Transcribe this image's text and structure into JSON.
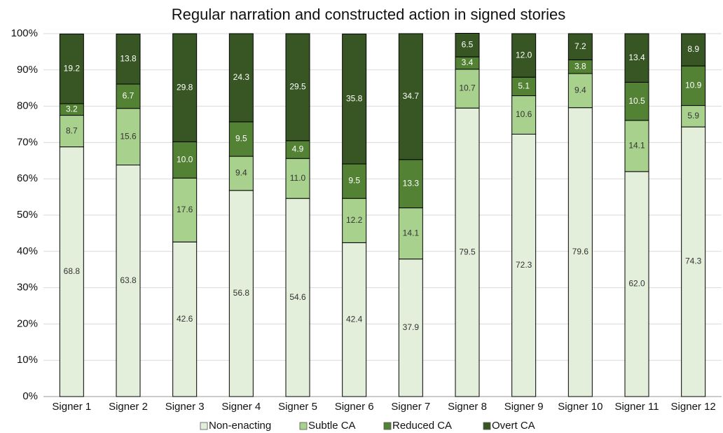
{
  "chart_data": {
    "type": "stacked_bar",
    "title": "Regular narration and constructed action in signed stories",
    "categories": [
      "Signer 1",
      "Signer 2",
      "Signer 3",
      "Signer 4",
      "Signer 5",
      "Signer 6",
      "Signer 7",
      "Signer 8",
      "Signer 9",
      "Signer 10",
      "Signer 11",
      "Signer 12"
    ],
    "series": [
      {
        "name": "Non-enacting",
        "color": "#e4efdb",
        "text_color": "#333333",
        "values": [
          68.8,
          63.8,
          42.6,
          56.8,
          54.6,
          42.4,
          37.9,
          79.5,
          72.3,
          79.6,
          62.0,
          74.3
        ],
        "value_labels": [
          "68.8",
          "63.8",
          "42.6",
          "56.8",
          "54.6",
          "42.4",
          "37.9",
          "79.5",
          "72.3",
          "79.6",
          "62.0",
          "74.3"
        ]
      },
      {
        "name": "Subtle CA",
        "color": "#a9d18e",
        "text_color": "#333333",
        "values": [
          8.7,
          15.6,
          17.6,
          9.4,
          11.0,
          12.2,
          14.1,
          10.7,
          10.6,
          9.4,
          14.1,
          5.9
        ],
        "value_labels": [
          "8.7",
          "15.6",
          "17.6",
          "9.4",
          "11.0",
          "12.2",
          "14.1",
          "10.7",
          "10.6",
          "9.4",
          "14.1",
          "5.9"
        ]
      },
      {
        "name": "Reduced CA",
        "color": "#548235",
        "text_color": "#ffffff",
        "values": [
          3.2,
          6.7,
          10.0,
          9.5,
          4.9,
          9.5,
          13.3,
          3.4,
          5.1,
          3.8,
          10.5,
          10.9
        ],
        "value_labels": [
          "3.2",
          "6.7",
          "10.0",
          "9.5",
          "4.9",
          "9.5",
          "13.3",
          "3.4",
          "5.1",
          "3.8",
          "10.5",
          "10.9"
        ]
      },
      {
        "name": "Overt CA",
        "color": "#375623",
        "text_color": "#ffffff",
        "values": [
          19.2,
          13.8,
          29.8,
          24.3,
          29.5,
          35.8,
          34.7,
          6.5,
          12.0,
          7.2,
          13.4,
          8.9
        ],
        "value_labels": [
          "19.2",
          "13.8",
          "29.8",
          "24.3",
          "29.5",
          "35.8",
          "34.7",
          "6.5",
          "12.0",
          "7.2",
          "13.4",
          "8.9"
        ]
      }
    ],
    "ylim": [
      0,
      100
    ],
    "yticks": [
      {
        "value": 0,
        "label": "0%"
      },
      {
        "value": 10,
        "label": "10%"
      },
      {
        "value": 20,
        "label": "20%"
      },
      {
        "value": 30,
        "label": "30%"
      },
      {
        "value": 40,
        "label": "40%"
      },
      {
        "value": 50,
        "label": "50%"
      },
      {
        "value": 60,
        "label": "60%"
      },
      {
        "value": 70,
        "label": "70%"
      },
      {
        "value": 80,
        "label": "80%"
      },
      {
        "value": 90,
        "label": "90%"
      },
      {
        "value": 100,
        "label": "100%"
      }
    ],
    "grid": true,
    "legend": "bottom"
  }
}
